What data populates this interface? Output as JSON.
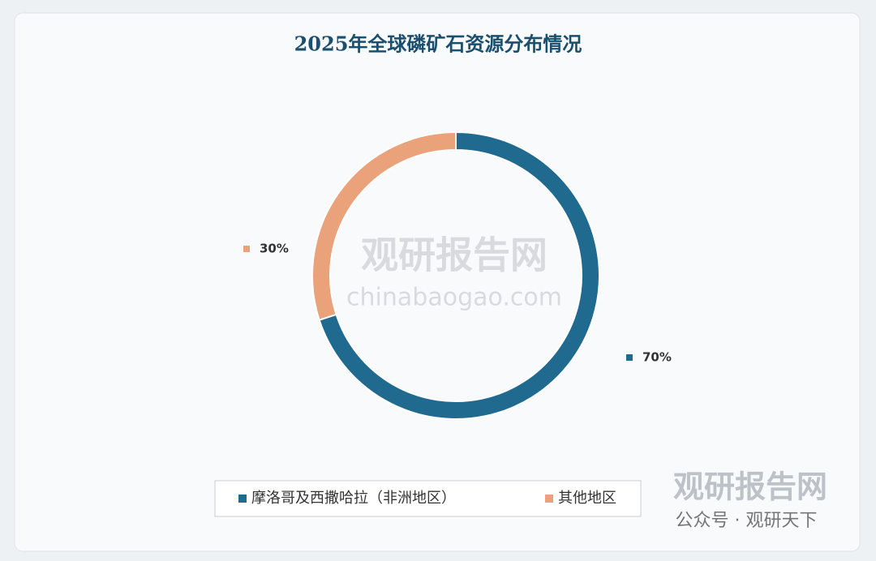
{
  "chart_data": {
    "type": "donut",
    "title": "2025年全球磷矿石资源分布情况",
    "categories": [
      "摩洛哥及西撒哈拉（非洲地区）",
      "其他地区"
    ],
    "values": [
      70,
      30
    ],
    "value_labels": [
      "70%",
      "30%"
    ],
    "colors": [
      "#1f6a8e",
      "#e9a27a"
    ],
    "watermarks": [
      "观研报告网",
      "chinabaogao.com",
      "观研报告网",
      "公众号 · 观研天下"
    ]
  }
}
